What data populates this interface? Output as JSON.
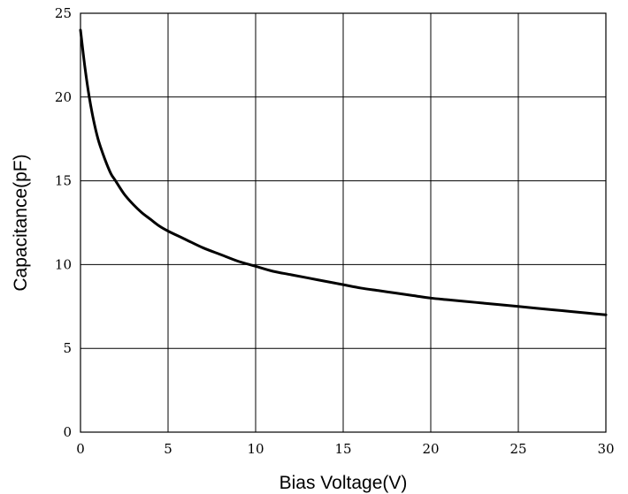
{
  "chart_data": {
    "type": "line",
    "title": "",
    "xlabel": "Bias Voltage(V)",
    "ylabel": "Capacitance(pF)",
    "xlim": [
      0,
      30
    ],
    "ylim": [
      0,
      25
    ],
    "x_ticks": [
      "0",
      "5",
      "10",
      "15",
      "20",
      "25",
      "30"
    ],
    "y_ticks": [
      "0",
      "5",
      "10",
      "15",
      "20",
      "25"
    ],
    "grid": true,
    "legend": "none",
    "line_color": "#000000",
    "series": [
      {
        "x": [
          0,
          0.25,
          0.5,
          0.75,
          1,
          1.25,
          1.5,
          1.75,
          2,
          2.5,
          3,
          3.5,
          4,
          4.5,
          5,
          6,
          7,
          8,
          9,
          10,
          11,
          12,
          13,
          14,
          15,
          16,
          17,
          18,
          19,
          20,
          21,
          22,
          23,
          24,
          25,
          26,
          27,
          28,
          29,
          30
        ],
        "values": [
          24.0,
          21.8,
          20.0,
          18.6,
          17.5,
          16.7,
          16.0,
          15.4,
          15.0,
          14.2,
          13.6,
          13.1,
          12.7,
          12.3,
          12.0,
          11.5,
          11.0,
          10.6,
          10.2,
          9.9,
          9.6,
          9.4,
          9.2,
          9.0,
          8.8,
          8.6,
          8.45,
          8.3,
          8.15,
          8.0,
          7.9,
          7.8,
          7.7,
          7.6,
          7.5,
          7.4,
          7.3,
          7.2,
          7.1,
          7.0
        ]
      }
    ]
  }
}
